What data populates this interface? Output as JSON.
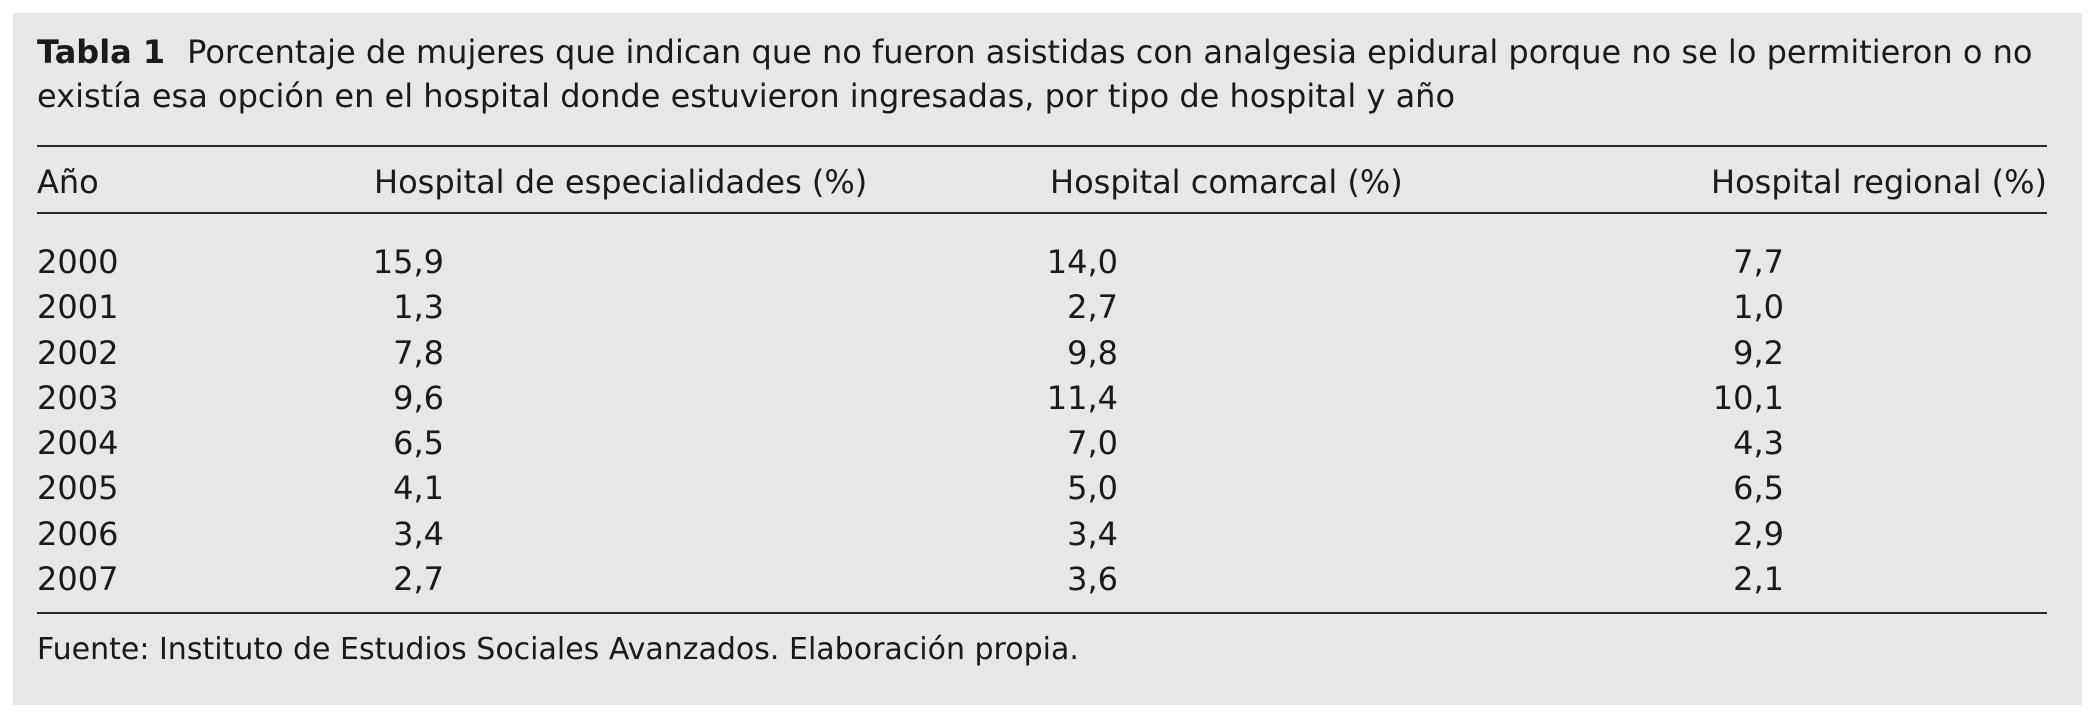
{
  "table": {
    "label": "Tabla 1",
    "title": "Porcentaje de mujeres que indican que no fueron asistidas con analgesia epidural porque no se lo permitieron o no existía esa opción en el hospital donde estuvieron ingresadas, por tipo de hospital y año",
    "headers": [
      "Año",
      "Hospital de especialidades (%)",
      "Hospital comarcal (%)",
      "Hospital regional (%)"
    ],
    "rows": [
      [
        "2000",
        "15,9",
        "14,0",
        "7,7"
      ],
      [
        "2001",
        "1,3",
        "2,7",
        "1,0"
      ],
      [
        "2002",
        "7,8",
        "9,8",
        "9,2"
      ],
      [
        "2003",
        "9,6",
        "11,4",
        "10,1"
      ],
      [
        "2004",
        "6,5",
        "7,0",
        "4,3"
      ],
      [
        "2005",
        "4,1",
        "5,0",
        "6,5"
      ],
      [
        "2006",
        "3,4",
        "3,4",
        "2,9"
      ],
      [
        "2007",
        "2,7",
        "3,6",
        "2,1"
      ]
    ],
    "source": "Fuente: Instituto de Estudios Sociales Avanzados. Elaboración propia."
  }
}
